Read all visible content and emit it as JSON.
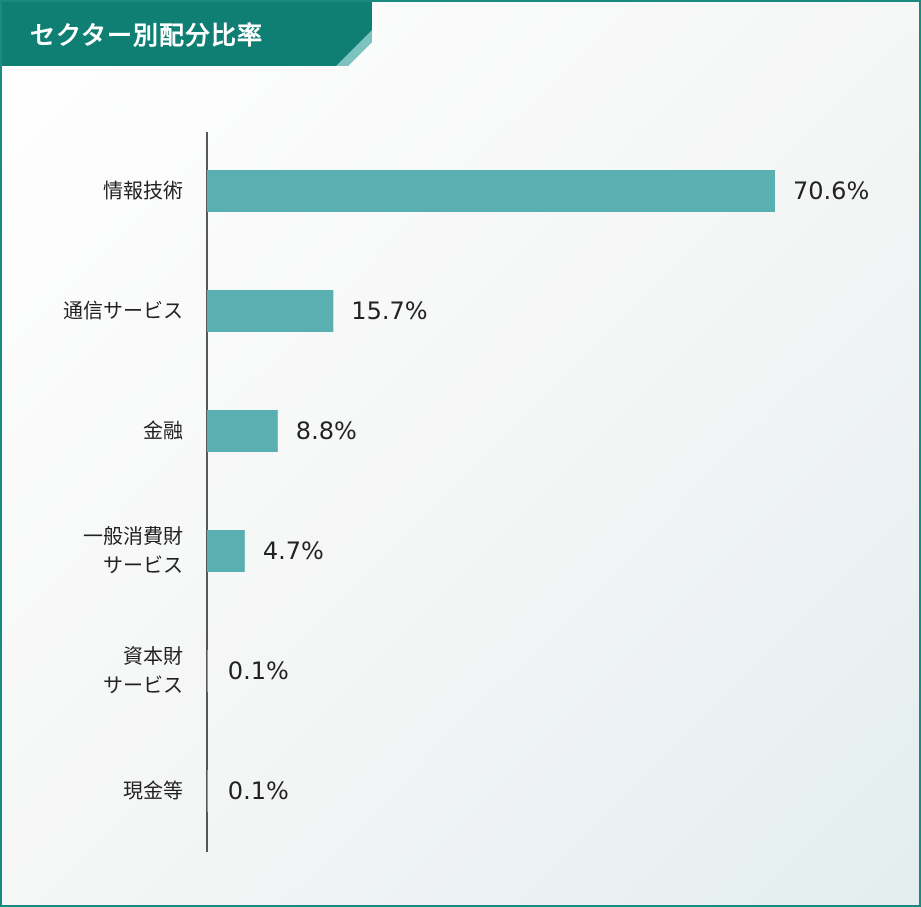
{
  "chart_data": {
    "type": "bar",
    "orientation": "horizontal",
    "title": "セクター別配分比率",
    "categories": [
      "情報技術",
      "通信サービス",
      "金融",
      "一般消費財\nサービス",
      "資本財\nサービス",
      "現金等"
    ],
    "values": [
      70.6,
      15.7,
      8.8,
      4.7,
      0.1,
      0.1
    ],
    "value_labels": [
      "70.6%",
      "15.7%",
      "8.8%",
      "4.7%",
      "0.1%",
      "0.1%"
    ],
    "color": "#5aafb0"
  }
}
